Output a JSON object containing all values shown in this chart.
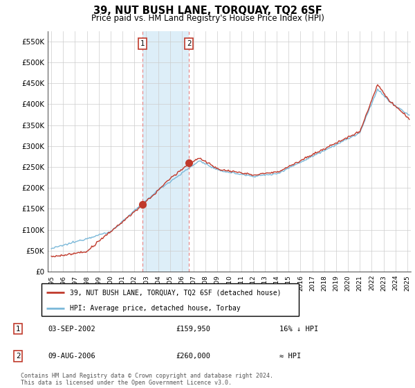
{
  "title": "39, NUT BUSH LANE, TORQUAY, TQ2 6SF",
  "subtitle": "Price paid vs. HM Land Registry's House Price Index (HPI)",
  "legend_line1": "39, NUT BUSH LANE, TORQUAY, TQ2 6SF (detached house)",
  "legend_line2": "HPI: Average price, detached house, Torbay",
  "sale1_date": "03-SEP-2002",
  "sale1_price": "£159,950",
  "sale1_label": "16% ↓ HPI",
  "sale1_x": 2002.67,
  "sale1_y": 159950,
  "sale2_date": "09-AUG-2006",
  "sale2_price": "£260,000",
  "sale2_label": "≈ HPI",
  "sale2_x": 2006.61,
  "sale2_y": 260000,
  "yticks": [
    0,
    50000,
    100000,
    150000,
    200000,
    250000,
    300000,
    350000,
    400000,
    450000,
    500000,
    550000
  ],
  "ylim": [
    0,
    575000
  ],
  "xlim": [
    1994.7,
    2025.3
  ],
  "hpi_color": "#7ab8d9",
  "price_color": "#c0392b",
  "shade_color": "#ddeef8",
  "grid_color": "#cccccc",
  "bg_color": "#ffffff",
  "footer1": "Contains HM Land Registry data © Crown copyright and database right 2024.",
  "footer2": "This data is licensed under the Open Government Licence v3.0."
}
